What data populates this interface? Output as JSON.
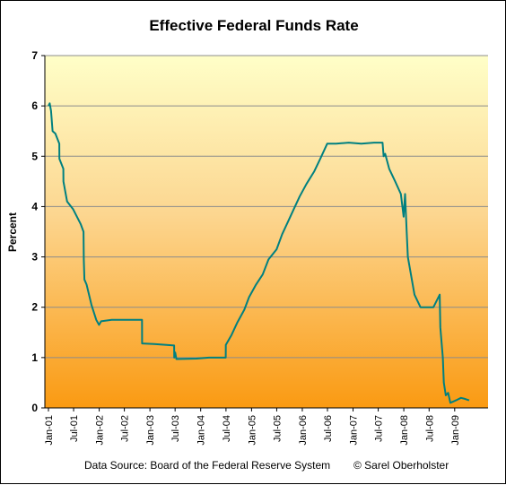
{
  "chart_data": {
    "type": "line",
    "title": "Effective Federal Funds Rate",
    "xlabel": "",
    "ylabel": "Percent",
    "ylim": [
      0,
      7
    ],
    "yticks": [
      "0",
      "1",
      "2",
      "3",
      "4",
      "5",
      "6",
      "7"
    ],
    "xticks": [
      "Jan-01",
      "Jul-01",
      "Jan-02",
      "Jul-02",
      "Jan-03",
      "Jul-03",
      "Jan-04",
      "Jul-04",
      "Jan-05",
      "Jul-05",
      "Jan-06",
      "Jul-06",
      "Jan-07",
      "Jul-07",
      "Jan-08",
      "Jul-08",
      "Jan-09"
    ],
    "grid": "horizontal",
    "legend": "none",
    "series": [
      {
        "color": "#008080",
        "points": [
          [
            "2001-01-01",
            6.0
          ],
          [
            "2001-01-10",
            6.05
          ],
          [
            "2001-01-20",
            5.9
          ],
          [
            "2001-01-31",
            5.5
          ],
          [
            "2001-02-20",
            5.45
          ],
          [
            "2001-03-20",
            5.25
          ],
          [
            "2001-03-21",
            4.95
          ],
          [
            "2001-04-18",
            4.75
          ],
          [
            "2001-04-19",
            4.5
          ],
          [
            "2001-05-15",
            4.1
          ],
          [
            "2001-06-27",
            3.95
          ],
          [
            "2001-08-21",
            3.65
          ],
          [
            "2001-09-10",
            3.5
          ],
          [
            "2001-09-12",
            2.95
          ],
          [
            "2001-09-17",
            2.55
          ],
          [
            "2001-10-02",
            2.45
          ],
          [
            "2001-11-06",
            2.05
          ],
          [
            "2001-12-11",
            1.75
          ],
          [
            "2001-12-31",
            1.65
          ],
          [
            "2002-01-15",
            1.72
          ],
          [
            "2002-04-01",
            1.75
          ],
          [
            "2002-07-01",
            1.75
          ],
          [
            "2002-11-05",
            1.75
          ],
          [
            "2002-11-06",
            1.28
          ],
          [
            "2003-02-01",
            1.27
          ],
          [
            "2003-05-01",
            1.25
          ],
          [
            "2003-06-24",
            1.24
          ],
          [
            "2003-06-25",
            1.0
          ],
          [
            "2003-07-02",
            1.1
          ],
          [
            "2003-07-10",
            0.97
          ],
          [
            "2003-12-01",
            0.98
          ],
          [
            "2004-03-01",
            1.0
          ],
          [
            "2004-06-29",
            1.0
          ],
          [
            "2004-06-30",
            1.25
          ],
          [
            "2004-08-10",
            1.45
          ],
          [
            "2004-09-21",
            1.7
          ],
          [
            "2004-11-10",
            1.95
          ],
          [
            "2004-12-14",
            2.2
          ],
          [
            "2005-02-02",
            2.45
          ],
          [
            "2005-03-22",
            2.65
          ],
          [
            "2005-05-03",
            2.95
          ],
          [
            "2005-06-30",
            3.15
          ],
          [
            "2005-08-09",
            3.45
          ],
          [
            "2005-09-20",
            3.7
          ],
          [
            "2005-11-01",
            3.95
          ],
          [
            "2005-12-13",
            4.2
          ],
          [
            "2006-01-31",
            4.45
          ],
          [
            "2006-03-28",
            4.7
          ],
          [
            "2006-05-10",
            4.95
          ],
          [
            "2006-06-29",
            5.25
          ],
          [
            "2006-09-01",
            5.25
          ],
          [
            "2006-12-01",
            5.27
          ],
          [
            "2007-03-01",
            5.25
          ],
          [
            "2007-06-01",
            5.27
          ],
          [
            "2007-08-01",
            5.27
          ],
          [
            "2007-08-09",
            5.0
          ],
          [
            "2007-08-20",
            5.05
          ],
          [
            "2007-09-18",
            4.75
          ],
          [
            "2007-10-31",
            4.5
          ],
          [
            "2007-12-11",
            4.25
          ],
          [
            "2007-12-31",
            3.8
          ],
          [
            "2008-01-10",
            4.25
          ],
          [
            "2008-01-22",
            3.5
          ],
          [
            "2008-01-30",
            3.0
          ],
          [
            "2008-03-18",
            2.25
          ],
          [
            "2008-04-30",
            2.0
          ],
          [
            "2008-06-01",
            2.0
          ],
          [
            "2008-08-01",
            2.0
          ],
          [
            "2008-09-15",
            2.25
          ],
          [
            "2008-09-20",
            1.6
          ],
          [
            "2008-10-08",
            1.0
          ],
          [
            "2008-10-15",
            0.5
          ],
          [
            "2008-10-29",
            0.25
          ],
          [
            "2008-11-15",
            0.3
          ],
          [
            "2008-12-01",
            0.1
          ],
          [
            "2008-12-16",
            0.12
          ],
          [
            "2009-01-10",
            0.15
          ],
          [
            "2009-02-15",
            0.2
          ],
          [
            "2009-03-15",
            0.18
          ],
          [
            "2009-04-15",
            0.15
          ]
        ]
      }
    ]
  },
  "footer": {
    "source": "Data Source: Board of the Federal Reserve System",
    "credit": "© Sarel Oberholster"
  }
}
